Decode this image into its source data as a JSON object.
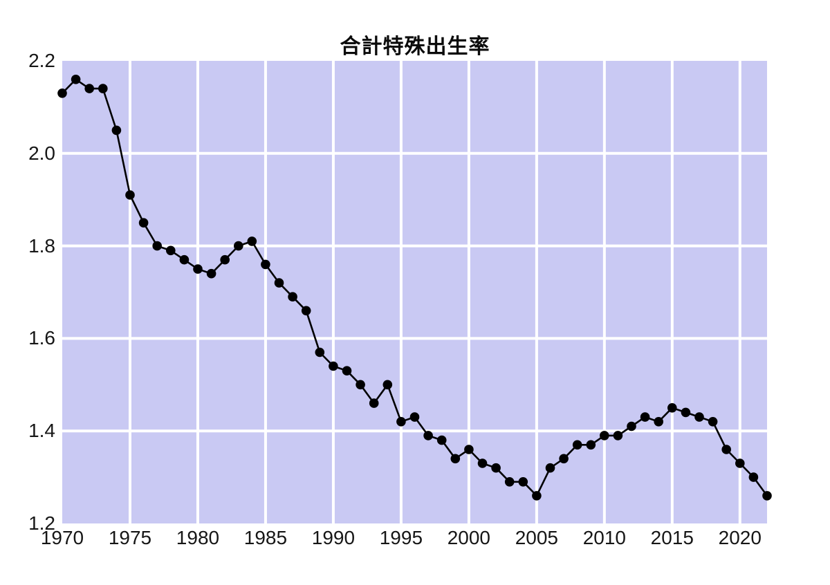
{
  "title": "合計特殊出生率",
  "chart_data": {
    "type": "line",
    "title": "合計特殊出生率",
    "series_name": "合計特殊出生率",
    "x": [
      1970,
      1971,
      1972,
      1973,
      1974,
      1975,
      1976,
      1977,
      1978,
      1979,
      1980,
      1981,
      1982,
      1983,
      1984,
      1985,
      1986,
      1987,
      1988,
      1989,
      1990,
      1991,
      1992,
      1993,
      1994,
      1995,
      1996,
      1997,
      1998,
      1999,
      2000,
      2001,
      2002,
      2003,
      2004,
      2005,
      2006,
      2007,
      2008,
      2009,
      2010,
      2011,
      2012,
      2013,
      2014,
      2015,
      2016,
      2017,
      2018,
      2019,
      2020,
      2021,
      2022
    ],
    "values": [
      2.13,
      2.16,
      2.14,
      2.14,
      2.05,
      1.91,
      1.85,
      1.8,
      1.79,
      1.77,
      1.75,
      1.74,
      1.77,
      1.8,
      1.81,
      1.76,
      1.72,
      1.69,
      1.66,
      1.57,
      1.54,
      1.53,
      1.5,
      1.46,
      1.5,
      1.42,
      1.43,
      1.39,
      1.38,
      1.34,
      1.36,
      1.33,
      1.32,
      1.29,
      1.29,
      1.26,
      1.32,
      1.34,
      1.37,
      1.37,
      1.39,
      1.39,
      1.41,
      1.43,
      1.42,
      1.45,
      1.44,
      1.43,
      1.42,
      1.36,
      1.33,
      1.3,
      1.26
    ],
    "xlabel": "",
    "ylabel": "",
    "xlim": [
      1970,
      2022
    ],
    "ylim": [
      1.2,
      2.2
    ],
    "x_ticks": [
      1970,
      1975,
      1980,
      1985,
      1990,
      1995,
      2000,
      2005,
      2010,
      2015,
      2020
    ],
    "x_tick_labels": [
      "1970",
      "1975",
      "1980",
      "1985",
      "1990",
      "1995",
      "2000",
      "2005",
      "2010",
      "2015",
      "2020"
    ],
    "y_ticks": [
      2.2,
      2.0,
      1.8,
      1.6,
      1.4,
      1.2
    ],
    "y_tick_labels": [
      "2.2",
      "2.0",
      "1.8",
      "1.6",
      "1.4",
      "1.2"
    ],
    "grid": true,
    "legend": "none",
    "colors": {
      "page_background": "#ffffff",
      "panel_background": "#c9c9f3",
      "gridline": "#ffffff",
      "line": "#000000",
      "marker": "#000000",
      "text": "#161616",
      "title_text": "#0b0b0b"
    }
  }
}
